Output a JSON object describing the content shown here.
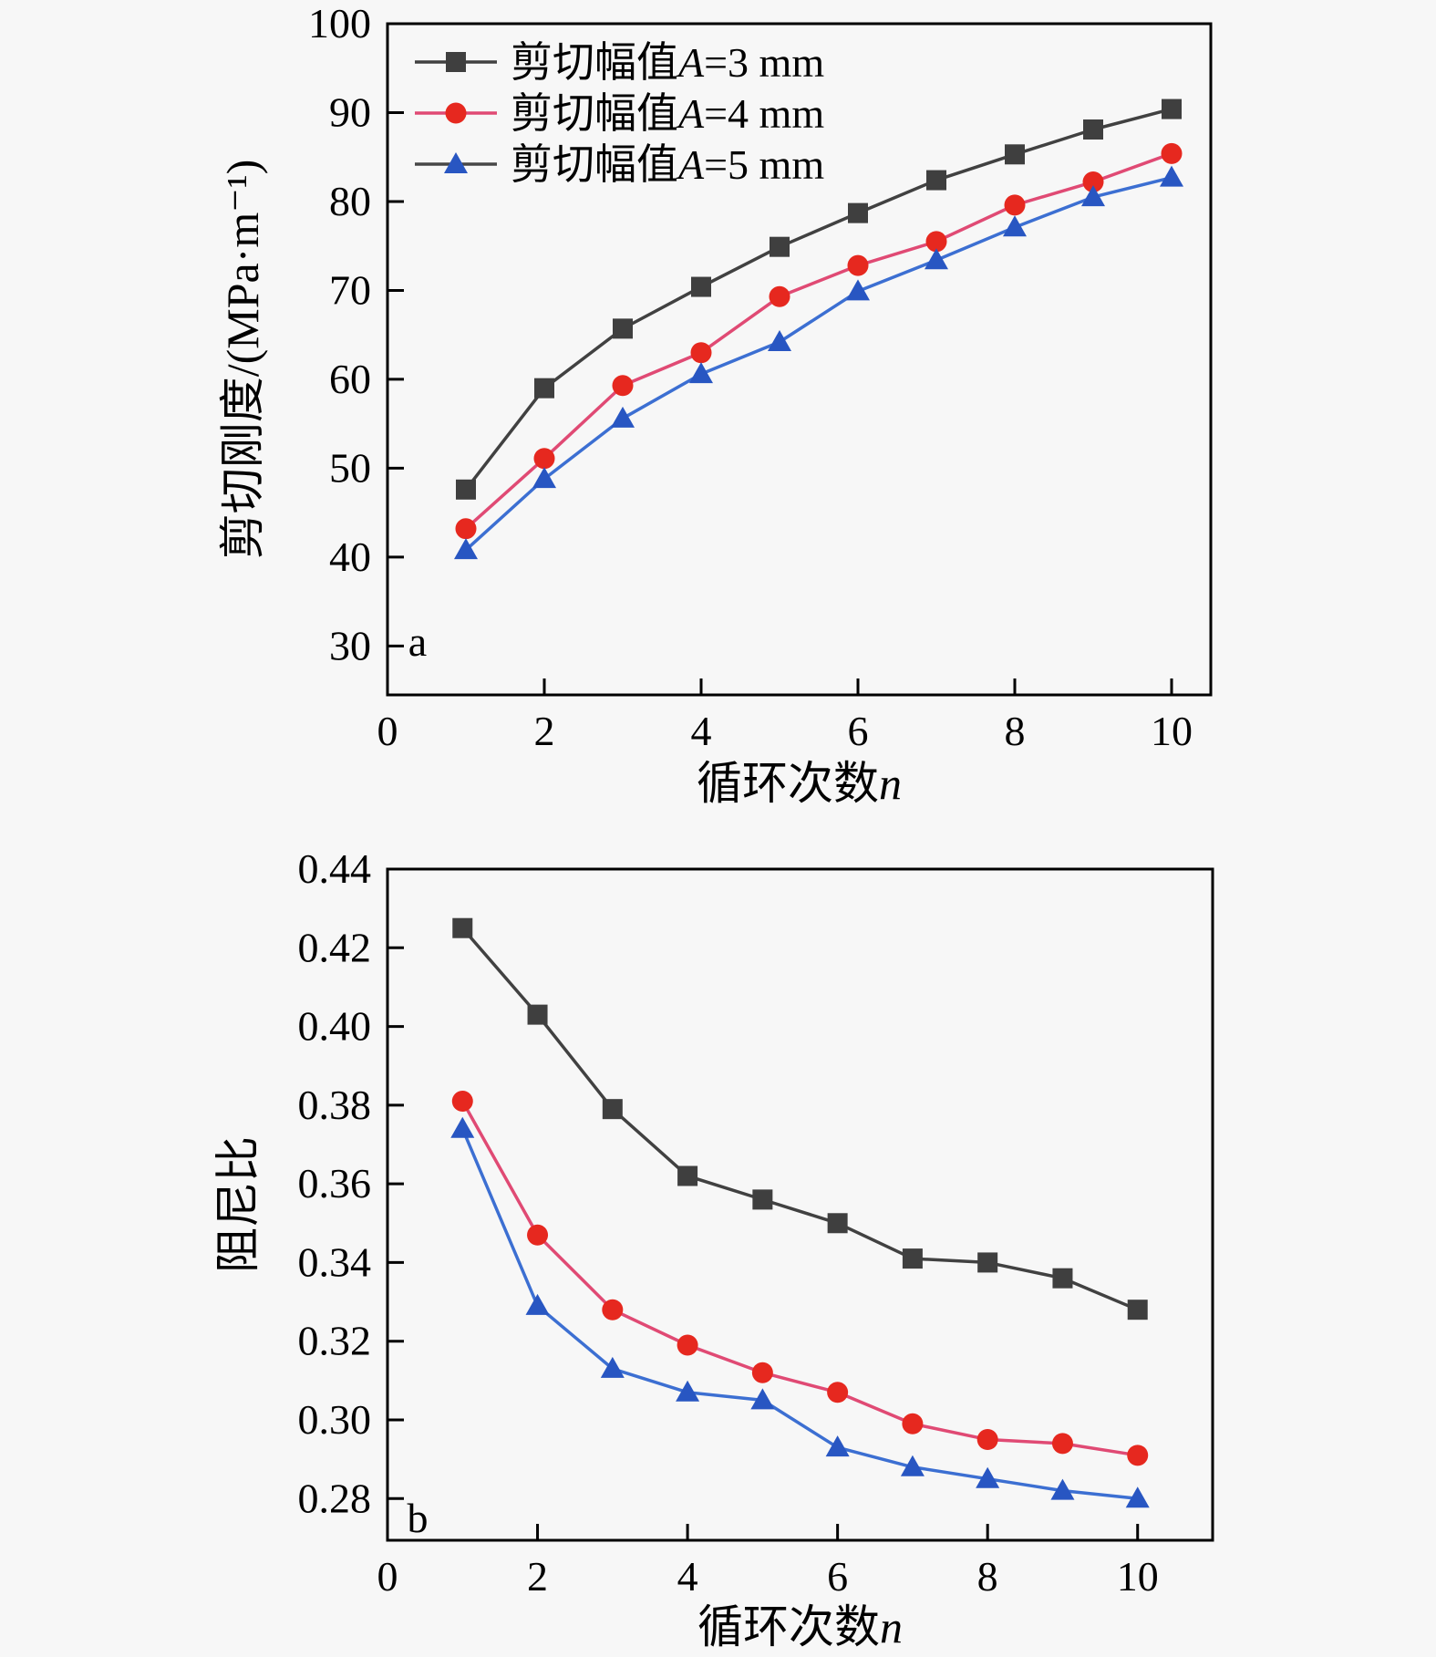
{
  "page": {
    "background": "#f7f7f7",
    "frame_color": "#000000",
    "text_color": "#000000"
  },
  "chart_data": [
    {
      "id": "a",
      "type": "line",
      "panel_label": "a",
      "xlabel": {
        "text": "循环次数",
        "var": "n"
      },
      "ylabel": "剪切刚度/(MPa·m⁻¹)",
      "xlim": [
        0,
        10.5
      ],
      "ylim": [
        24.5,
        100
      ],
      "xtick_values": [
        0,
        2,
        4,
        6,
        8,
        10
      ],
      "xtick_labels": [
        "0",
        "2",
        "4",
        "6",
        "8",
        "10"
      ],
      "ytick_values": [
        30,
        40,
        50,
        60,
        70,
        80,
        90,
        100
      ],
      "ytick_labels": [
        "30",
        "40",
        "50",
        "60",
        "70",
        "80",
        "90",
        "100"
      ],
      "grid": false,
      "legend": {
        "show": true,
        "position": "upper-left-inside"
      },
      "x": [
        1,
        2,
        3,
        4,
        5,
        6,
        7,
        8,
        9,
        10
      ],
      "series": [
        {
          "name": "剪切幅值A=3 mm",
          "label": {
            "prefix": "剪切幅值",
            "var": "A",
            "suffix": "=3 mm"
          },
          "marker": "square",
          "marker_color": "#3f3f3f",
          "line_color": "#414141",
          "legend_line_color": "#414141",
          "values": [
            47.6,
            59.0,
            65.7,
            70.4,
            74.9,
            78.7,
            82.4,
            85.3,
            88.1,
            90.4
          ]
        },
        {
          "name": "剪切幅值A=4 mm",
          "label": {
            "prefix": "剪切幅值",
            "var": "A",
            "suffix": "=4 mm"
          },
          "marker": "circle",
          "marker_color": "#e6281f",
          "line_color": "#e04a74",
          "legend_line_color": "#e04a74",
          "values": [
            43.2,
            51.1,
            59.3,
            63.0,
            69.3,
            72.8,
            75.5,
            79.6,
            82.2,
            85.4
          ]
        },
        {
          "name": "剪切幅值A=5 mm",
          "label": {
            "prefix": "剪切幅值",
            "var": "A",
            "suffix": "=5 mm"
          },
          "marker": "triangle",
          "marker_color": "#2856c2",
          "line_color": "#3c6fd2",
          "legend_line_color": "#474747",
          "values": [
            40.8,
            48.8,
            55.6,
            60.6,
            64.2,
            69.9,
            73.4,
            77.1,
            80.5,
            82.7
          ]
        }
      ]
    },
    {
      "id": "b",
      "type": "line",
      "panel_label": "b",
      "xlabel": {
        "text": "循环次数",
        "var": "n"
      },
      "ylabel": "阻尼比",
      "xlim": [
        0,
        11
      ],
      "ylim": [
        0.2694,
        0.44
      ],
      "xtick_values": [
        0,
        2,
        4,
        6,
        8,
        10
      ],
      "xtick_labels": [
        "0",
        "2",
        "4",
        "6",
        "8",
        "10"
      ],
      "ytick_values": [
        0.28,
        0.3,
        0.32,
        0.34,
        0.36,
        0.38,
        0.4,
        0.42,
        0.44
      ],
      "ytick_labels": [
        "0.28",
        "0.30",
        "0.32",
        "0.34",
        "0.36",
        "0.38",
        "0.40",
        "0.42",
        "0.44"
      ],
      "grid": false,
      "legend": {
        "show": false
      },
      "x": [
        1,
        2,
        3,
        4,
        5,
        6,
        7,
        8,
        9,
        10
      ],
      "series": [
        {
          "name": "剪切幅值A=3 mm",
          "label": {
            "prefix": "剪切幅值",
            "var": "A",
            "suffix": "=3 mm"
          },
          "marker": "square",
          "marker_color": "#3f3f3f",
          "line_color": "#414141",
          "legend_line_color": "#414141",
          "values": [
            0.425,
            0.403,
            0.379,
            0.362,
            0.356,
            0.35,
            0.341,
            0.34,
            0.336,
            0.328
          ]
        },
        {
          "name": "剪切幅值A=4 mm",
          "label": {
            "prefix": "剪切幅值",
            "var": "A",
            "suffix": "=4 mm"
          },
          "marker": "circle",
          "marker_color": "#e6281f",
          "line_color": "#e04a74",
          "legend_line_color": "#e04a74",
          "values": [
            0.381,
            0.347,
            0.328,
            0.319,
            0.312,
            0.307,
            0.299,
            0.295,
            0.294,
            0.291
          ]
        },
        {
          "name": "剪切幅值A=5 mm",
          "label": {
            "prefix": "剪切幅值",
            "var": "A",
            "suffix": "=5 mm"
          },
          "marker": "triangle",
          "marker_color": "#2856c2",
          "line_color": "#3c6fd2",
          "legend_line_color": "#474747",
          "values": [
            0.374,
            0.329,
            0.313,
            0.307,
            0.305,
            0.293,
            0.288,
            0.285,
            0.282,
            0.28
          ]
        }
      ]
    }
  ]
}
